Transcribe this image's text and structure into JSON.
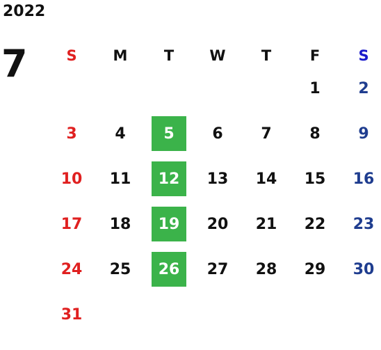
{
  "year": "2022",
  "month": "7",
  "weekdays": [
    "S",
    "M",
    "T",
    "W",
    "T",
    "F",
    "S"
  ],
  "weeks": [
    [
      "",
      "",
      "",
      "",
      "",
      "1",
      "2"
    ],
    [
      "3",
      "4",
      "5",
      "6",
      "7",
      "8",
      "9"
    ],
    [
      "10",
      "11",
      "12",
      "13",
      "14",
      "15",
      "16"
    ],
    [
      "17",
      "18",
      "19",
      "20",
      "21",
      "22",
      "23"
    ],
    [
      "24",
      "25",
      "26",
      "27",
      "28",
      "29",
      "30"
    ],
    [
      "31",
      "",
      "",
      "",
      "",
      "",
      ""
    ]
  ],
  "highlighted_days": [
    "5",
    "12",
    "19",
    "26"
  ],
  "colors": {
    "sunday": "#e02020",
    "saturday_header": "#1a1acc",
    "saturday": "#1f3d8f",
    "highlight": "#3bb34a"
  }
}
